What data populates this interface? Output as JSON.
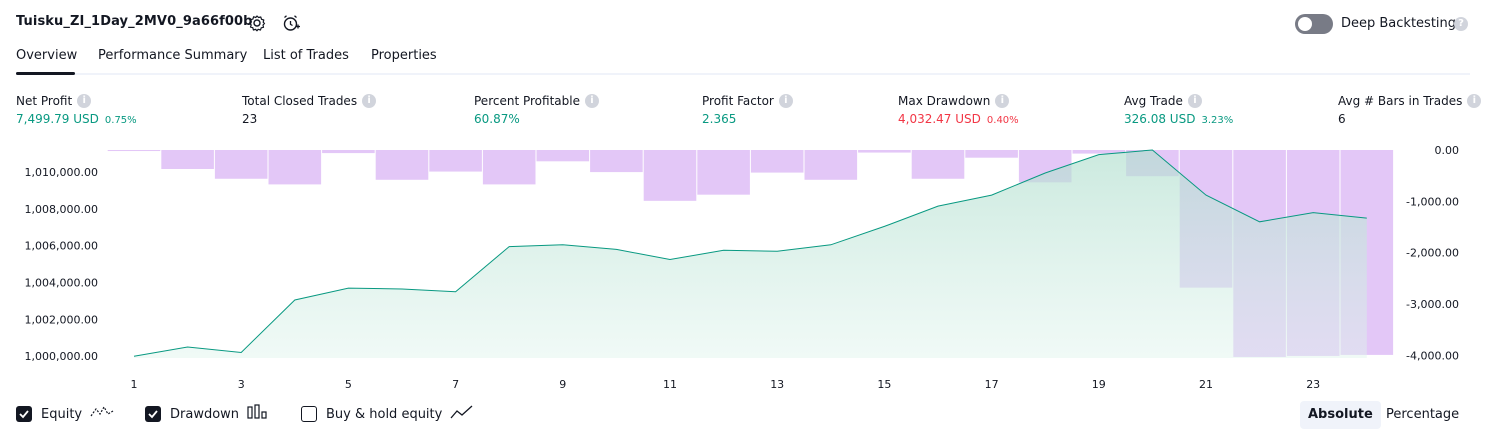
{
  "header": {
    "strategy_title": "Tuisku_ZI_1Day_2MV0_9a66f00b",
    "deep_backtesting_label": "Deep Backtesting",
    "deep_backtesting_enabled": false
  },
  "tabs": [
    {
      "label": "Overview",
      "active": true
    },
    {
      "label": "Performance Summary",
      "active": false
    },
    {
      "label": "List of Trades",
      "active": false
    },
    {
      "label": "Properties",
      "active": false
    }
  ],
  "metrics": [
    {
      "label": "Net Profit",
      "value": "7,499.79 USD",
      "pct": "0.75%",
      "color": "#089981"
    },
    {
      "label": "Total Closed Trades",
      "value": "23",
      "pct": "",
      "color": "#131722"
    },
    {
      "label": "Percent Profitable",
      "value": "60.87%",
      "pct": "",
      "color": "#089981"
    },
    {
      "label": "Profit Factor",
      "value": "2.365",
      "pct": "",
      "color": "#089981"
    },
    {
      "label": "Max Drawdown",
      "value": "4,032.47 USD",
      "pct": "0.40%",
      "color": "#f23645"
    },
    {
      "label": "Avg Trade",
      "value": "326.08 USD",
      "pct": "3.23%",
      "color": "#089981"
    },
    {
      "label": "Avg # Bars in Trades",
      "value": "6",
      "pct": "",
      "color": "#131722"
    }
  ],
  "chart_data": {
    "type": "line",
    "left_axis": {
      "ticks": [
        "1,010,000.00",
        "1,008,000.00",
        "1,006,000.00",
        "1,004,000.00",
        "1,002,000.00",
        "1,000,000.00"
      ],
      "ylim": [
        999900,
        1011200
      ]
    },
    "right_axis": {
      "ticks": [
        "0.00",
        "-1,000.00",
        "-2,000.00",
        "-3,000.00",
        "-4,000.00"
      ],
      "ylim": [
        -4050,
        0
      ]
    },
    "x_ticks": [
      "1",
      "3",
      "5",
      "7",
      "9",
      "11",
      "13",
      "15",
      "17",
      "19",
      "21",
      "23"
    ],
    "series": [
      {
        "name": "Equity",
        "color": "#089981",
        "x": [
          1,
          2,
          3,
          4,
          5,
          6,
          7,
          8,
          9,
          10,
          11,
          12,
          13,
          14,
          15,
          16,
          17,
          18,
          19,
          20,
          21,
          22,
          23,
          24
        ],
        "values": [
          1000000,
          1000500,
          1000200,
          1003050,
          1003700,
          1003650,
          1003500,
          1005950,
          1006050,
          1005800,
          1005250,
          1005750,
          1005700,
          1006050,
          1007050,
          1008150,
          1008750,
          1009950,
          1010950,
          1011200,
          1008750,
          1007300,
          1007800,
          1007500
        ]
      },
      {
        "name": "Drawdown",
        "color": "#ce93d8",
        "x": [
          1,
          2,
          3,
          4,
          5,
          6,
          7,
          8,
          9,
          10,
          11,
          12,
          13,
          14,
          15,
          16,
          17,
          18,
          19,
          20,
          21,
          22,
          23,
          24
        ],
        "values": [
          -20,
          -370,
          -560,
          -670,
          -60,
          -580,
          -420,
          -670,
          -220,
          -430,
          -990,
          -870,
          -440,
          -580,
          -50,
          -560,
          -150,
          -630,
          -70,
          -510,
          -2680,
          -4030,
          -4010,
          -3990
        ]
      }
    ]
  },
  "legend": [
    {
      "label": "Equity",
      "checked": true,
      "icon": "equity-line-icon"
    },
    {
      "label": "Drawdown",
      "checked": true,
      "icon": "drawdown-bars-icon"
    },
    {
      "label": "Buy & hold equity",
      "checked": false,
      "icon": "buy-hold-line-icon"
    }
  ],
  "scale_toggle": {
    "absolute_label": "Absolute",
    "percentage_label": "Percentage",
    "selected": "Absolute"
  }
}
